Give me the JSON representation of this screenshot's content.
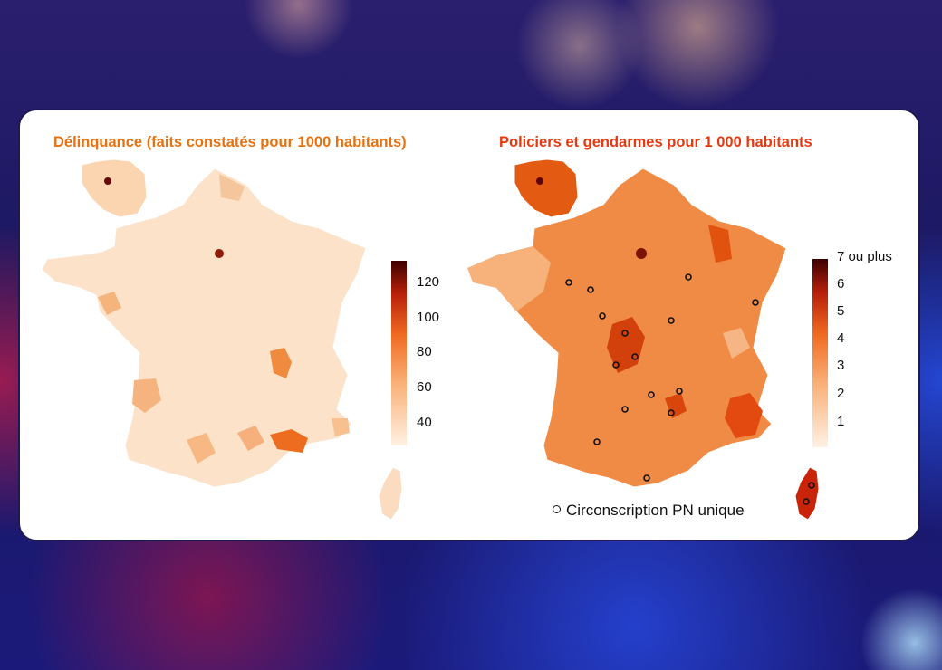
{
  "map_left": {
    "title": "Délinquance (faits constatés pour 1000 habitants)",
    "legend": {
      "ticks": [
        "120",
        "100",
        "80",
        "60",
        "40"
      ],
      "color_low": "#fde9d4",
      "color_high": "#3d0000"
    }
  },
  "map_right": {
    "title": "Policiers et gendarmes pour 1 000 habitants",
    "legend": {
      "ticks": [
        "7 ou plus",
        "6",
        "5",
        "4",
        "3",
        "2",
        "1"
      ],
      "color_low": "#fde9d4",
      "color_high": "#3d0000"
    },
    "note": "Circonscription PN unique"
  }
}
